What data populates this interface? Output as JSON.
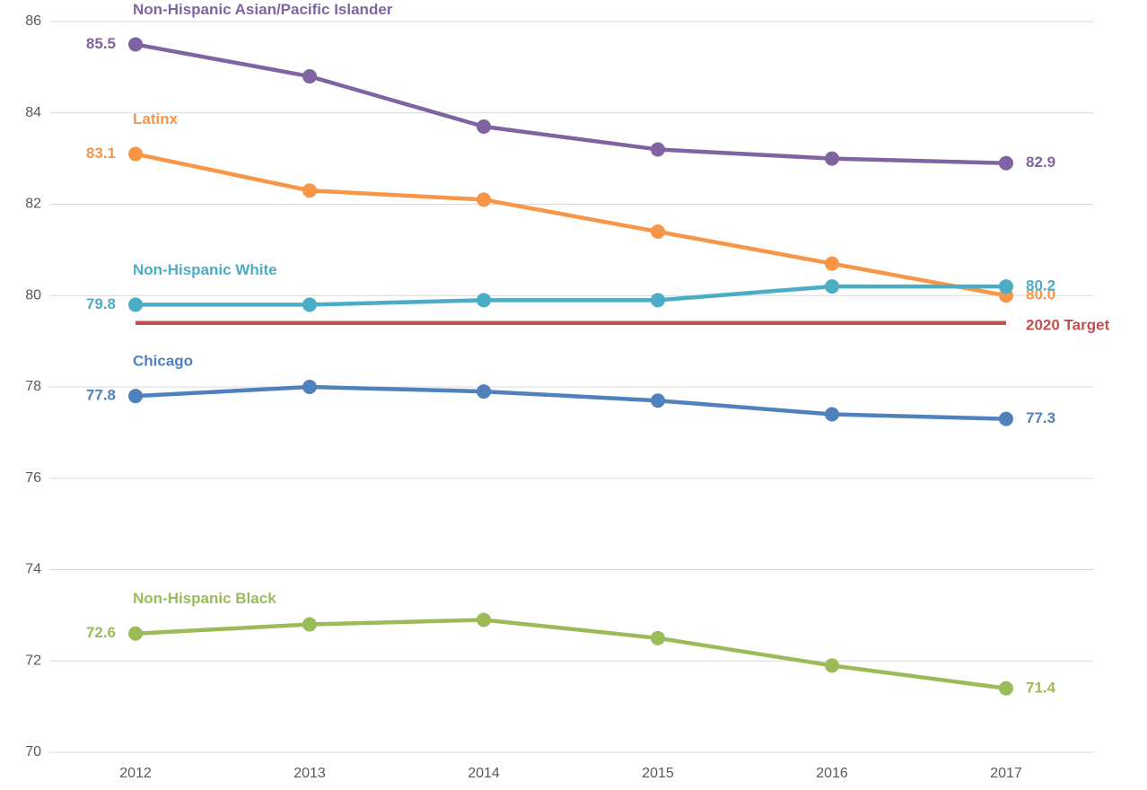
{
  "chart_data": {
    "type": "line",
    "categories": [
      "2012",
      "2013",
      "2014",
      "2015",
      "2016",
      "2017"
    ],
    "ylim": [
      70,
      86
    ],
    "yticks": [
      70,
      72,
      74,
      76,
      78,
      80,
      82,
      84,
      86
    ],
    "grid": true,
    "series": [
      {
        "name": "Non-Hispanic Asian/Pacific Islander",
        "color": "#8064a2",
        "values": [
          85.5,
          84.8,
          83.7,
          83.2,
          83.0,
          82.9
        ],
        "value_labels": [
          "85.5",
          null,
          null,
          null,
          null,
          "82.9"
        ]
      },
      {
        "name": "Latinx",
        "color": "#f79646",
        "values": [
          83.1,
          82.3,
          82.1,
          81.4,
          80.7,
          80.0
        ],
        "value_labels": [
          "83.1",
          null,
          null,
          null,
          null,
          "80.0"
        ]
      },
      {
        "name": "Non-Hispanic White",
        "color": "#4bacc6",
        "values": [
          79.8,
          79.8,
          79.9,
          79.9,
          80.2,
          80.2
        ],
        "value_labels": [
          "79.8",
          null,
          null,
          null,
          null,
          "80.2"
        ]
      },
      {
        "name": "2020 Target",
        "color": "#c0504d",
        "markers": false,
        "values": [
          79.4,
          79.4,
          79.4,
          79.4,
          79.4,
          79.4
        ]
      },
      {
        "name": "Chicago",
        "color": "#4f81bd",
        "values": [
          77.8,
          78.0,
          77.9,
          77.7,
          77.4,
          77.3
        ],
        "value_labels": [
          "77.8",
          null,
          null,
          null,
          null,
          "77.3"
        ]
      },
      {
        "name": "Non-Hispanic Black",
        "color": "#9bbb59",
        "values": [
          72.6,
          72.8,
          72.9,
          72.5,
          71.9,
          71.4
        ],
        "value_labels": [
          "72.6",
          null,
          null,
          null,
          null,
          "71.4"
        ]
      }
    ]
  }
}
